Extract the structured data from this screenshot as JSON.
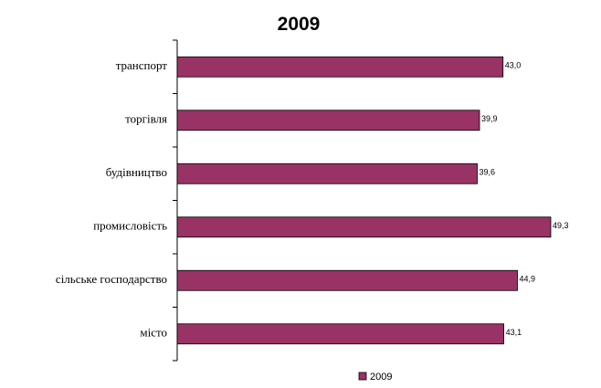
{
  "chart_data": {
    "type": "bar",
    "orientation": "horizontal",
    "title": "2009",
    "categories": [
      "транспорт",
      "торгівля",
      "будівництво",
      "промисловість",
      "сільське господарство",
      "місто"
    ],
    "series": [
      {
        "name": "2009",
        "color": "#993366",
        "values": [
          43.0,
          39.9,
          39.6,
          49.3,
          44.9,
          43.1
        ],
        "value_labels": [
          "43,0",
          "39,9",
          "39,6",
          "49,3",
          "44,9",
          "43,1"
        ]
      }
    ],
    "legend": "bottom"
  }
}
